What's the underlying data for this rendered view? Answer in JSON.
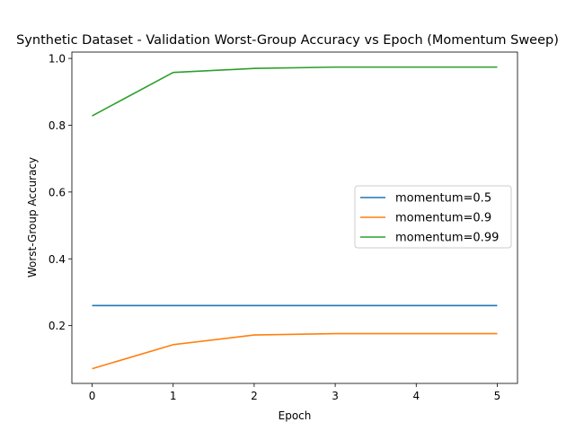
{
  "chart_data": {
    "type": "line",
    "title": "Synthetic Dataset - Validation Worst-Group Accuracy vs Epoch (Momentum Sweep)",
    "xlabel": "Epoch",
    "ylabel": "Worst-Group Accuracy",
    "x": [
      0,
      1,
      2,
      3,
      4,
      5
    ],
    "xlim": [
      -0.25,
      5.25
    ],
    "ylim": [
      0.027,
      1.019
    ],
    "xticks": [
      "0",
      "1",
      "2",
      "3",
      "4",
      "5"
    ],
    "yticks": [
      "0.2",
      "0.4",
      "0.6",
      "0.8",
      "1.0"
    ],
    "grid": false,
    "legend_position": "center-right",
    "series": [
      {
        "name": "momentum=0.5",
        "color": "#1f77b4",
        "values": [
          0.26,
          0.26,
          0.26,
          0.26,
          0.26,
          0.26
        ]
      },
      {
        "name": "momentum=0.9",
        "color": "#ff7f0e",
        "values": [
          0.071,
          0.143,
          0.172,
          0.176,
          0.176,
          0.176
        ]
      },
      {
        "name": "momentum=0.99",
        "color": "#2ca02c",
        "values": [
          0.828,
          0.958,
          0.97,
          0.974,
          0.974,
          0.974
        ]
      }
    ]
  }
}
